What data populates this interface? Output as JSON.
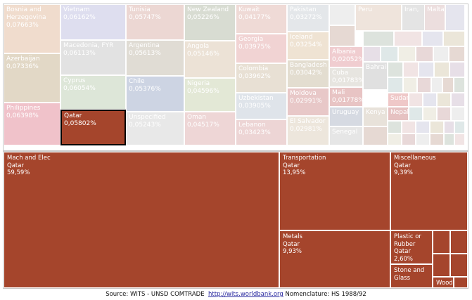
{
  "top_treemap": {
    "selected": "Qatar",
    "items": [
      {
        "name": "Bosnia and Herzegovina",
        "value": "0,07663%",
        "color": "#f0dccd"
      },
      {
        "name": "Azerbaijan",
        "value": "0,07336%",
        "color": "#e2d8c6"
      },
      {
        "name": "Philippines",
        "value": "0,06398%",
        "color": "#f0c2ca"
      },
      {
        "name": "Vietnam",
        "value": "0,06162%",
        "color": "#dedeef"
      },
      {
        "name": "Macedonia, FYR",
        "value": "0,06113%",
        "color": "#e2e2e2"
      },
      {
        "name": "Cyprus",
        "value": "0,06054%",
        "color": "#dde6d8"
      },
      {
        "name": "Qatar",
        "value": "0,05802%",
        "color": "#a5452c"
      },
      {
        "name": "Tunisia",
        "value": "0,05747%",
        "color": "#ecd7d3"
      },
      {
        "name": "Argentina",
        "value": "0,05613%",
        "color": "#e0dcd4"
      },
      {
        "name": "Chile",
        "value": "0,05376%",
        "color": "#cdd4e3"
      },
      {
        "name": "Unspecified",
        "value": "0,05243%",
        "color": "#e8e8e8"
      },
      {
        "name": "New Zealand",
        "value": "0,05226%",
        "color": "#d8dcd2"
      },
      {
        "name": "Angola",
        "value": "0,05146%",
        "color": "#ece2d6"
      },
      {
        "name": "Nigeria",
        "value": "0,04596%",
        "color": "#e3e8d6"
      },
      {
        "name": "Oman",
        "value": "0,04517%",
        "color": "#eed6d6"
      },
      {
        "name": "Kuwait",
        "value": "0,04177%",
        "color": "#efdad6"
      },
      {
        "name": "Georgia",
        "value": "0,03975%",
        "color": "#f1d3d3"
      },
      {
        "name": "Colombia",
        "value": "0,03962%",
        "color": "#e8e0d4"
      },
      {
        "name": "Uzbekistan",
        "value": "0,03905%",
        "color": "#dfe4ea"
      },
      {
        "name": "Lebanon",
        "value": "0,03423%",
        "color": "#edd5d5"
      },
      {
        "name": "Pakistan",
        "value": "0,03272%",
        "color": "#e4e7ea"
      },
      {
        "name": "Iceland",
        "value": "0,03254%",
        "color": "#efe3d3"
      },
      {
        "name": "Bangladesh",
        "value": "0,03042%",
        "color": "#e3ddd0"
      },
      {
        "name": "Moldova",
        "value": "0,02991%",
        "color": "#e8c8c8"
      },
      {
        "name": "El Salvador",
        "value": "0,02981%",
        "color": "#ede6dc"
      },
      {
        "name": "Albania",
        "value": "0,02052%",
        "color": "#f0cdd0"
      },
      {
        "name": "Cuba",
        "value": "0,01783%",
        "color": "#e7e5e0"
      },
      {
        "name": "Mali",
        "value": "0,01778%",
        "color": "#e8c4c4"
      },
      {
        "name": "Uruguay",
        "value": "",
        "color": "#d6dae2"
      },
      {
        "name": "Senegal",
        "value": "",
        "color": "#e6e6e6"
      },
      {
        "name": "Bahrain",
        "value": "",
        "color": "#e0e0e0"
      },
      {
        "name": "Kenya",
        "value": "",
        "color": "#e8e2da"
      },
      {
        "name": "Sudan",
        "value": "",
        "color": "#efc8c8"
      },
      {
        "name": "Nepal",
        "value": "",
        "color": "#e6c2c2"
      },
      {
        "name": "Peru",
        "value": "",
        "color": "#efe4dc"
      },
      {
        "name": "Iran,",
        "value": "",
        "color": "#e4e4e4"
      },
      {
        "name": "Malta",
        "value": "",
        "color": "#ecdede"
      }
    ],
    "small_tile_colors": [
      "#eeeeee",
      "#e6d9d3",
      "#dde3dd",
      "#f1e4e4",
      "#e5e5ee",
      "#ebe6d9",
      "#e7dfe7",
      "#dfe8e8",
      "#f0eee5",
      "#e8d8d8"
    ]
  },
  "chart_data": {
    "type": "treemap",
    "title": "",
    "partner": "Qatar",
    "sectors": [
      {
        "name": "Mach and Elec",
        "partner": "Qatar",
        "share": "59,59%"
      },
      {
        "name": "Transportation",
        "partner": "Qatar",
        "share": "13,95%"
      },
      {
        "name": "Miscellaneous",
        "partner": "Qatar",
        "share": "9,39%"
      },
      {
        "name": "Metals",
        "partner": "Qatar",
        "share": "9,93%"
      },
      {
        "name": "Plastic or Rubber",
        "partner": "Qatar",
        "share": "2,60%"
      },
      {
        "name": "Stone and Glass",
        "partner": "",
        "share": ""
      },
      {
        "name": "Wood",
        "partner": "",
        "share": ""
      }
    ],
    "tile_color": "#a5452c"
  },
  "source": {
    "label": "Source: WITS - UNSD COMTRADE",
    "link": "http://wits.worldbank.org",
    "nomenclature": "Nomenclature: HS 1988/92"
  }
}
